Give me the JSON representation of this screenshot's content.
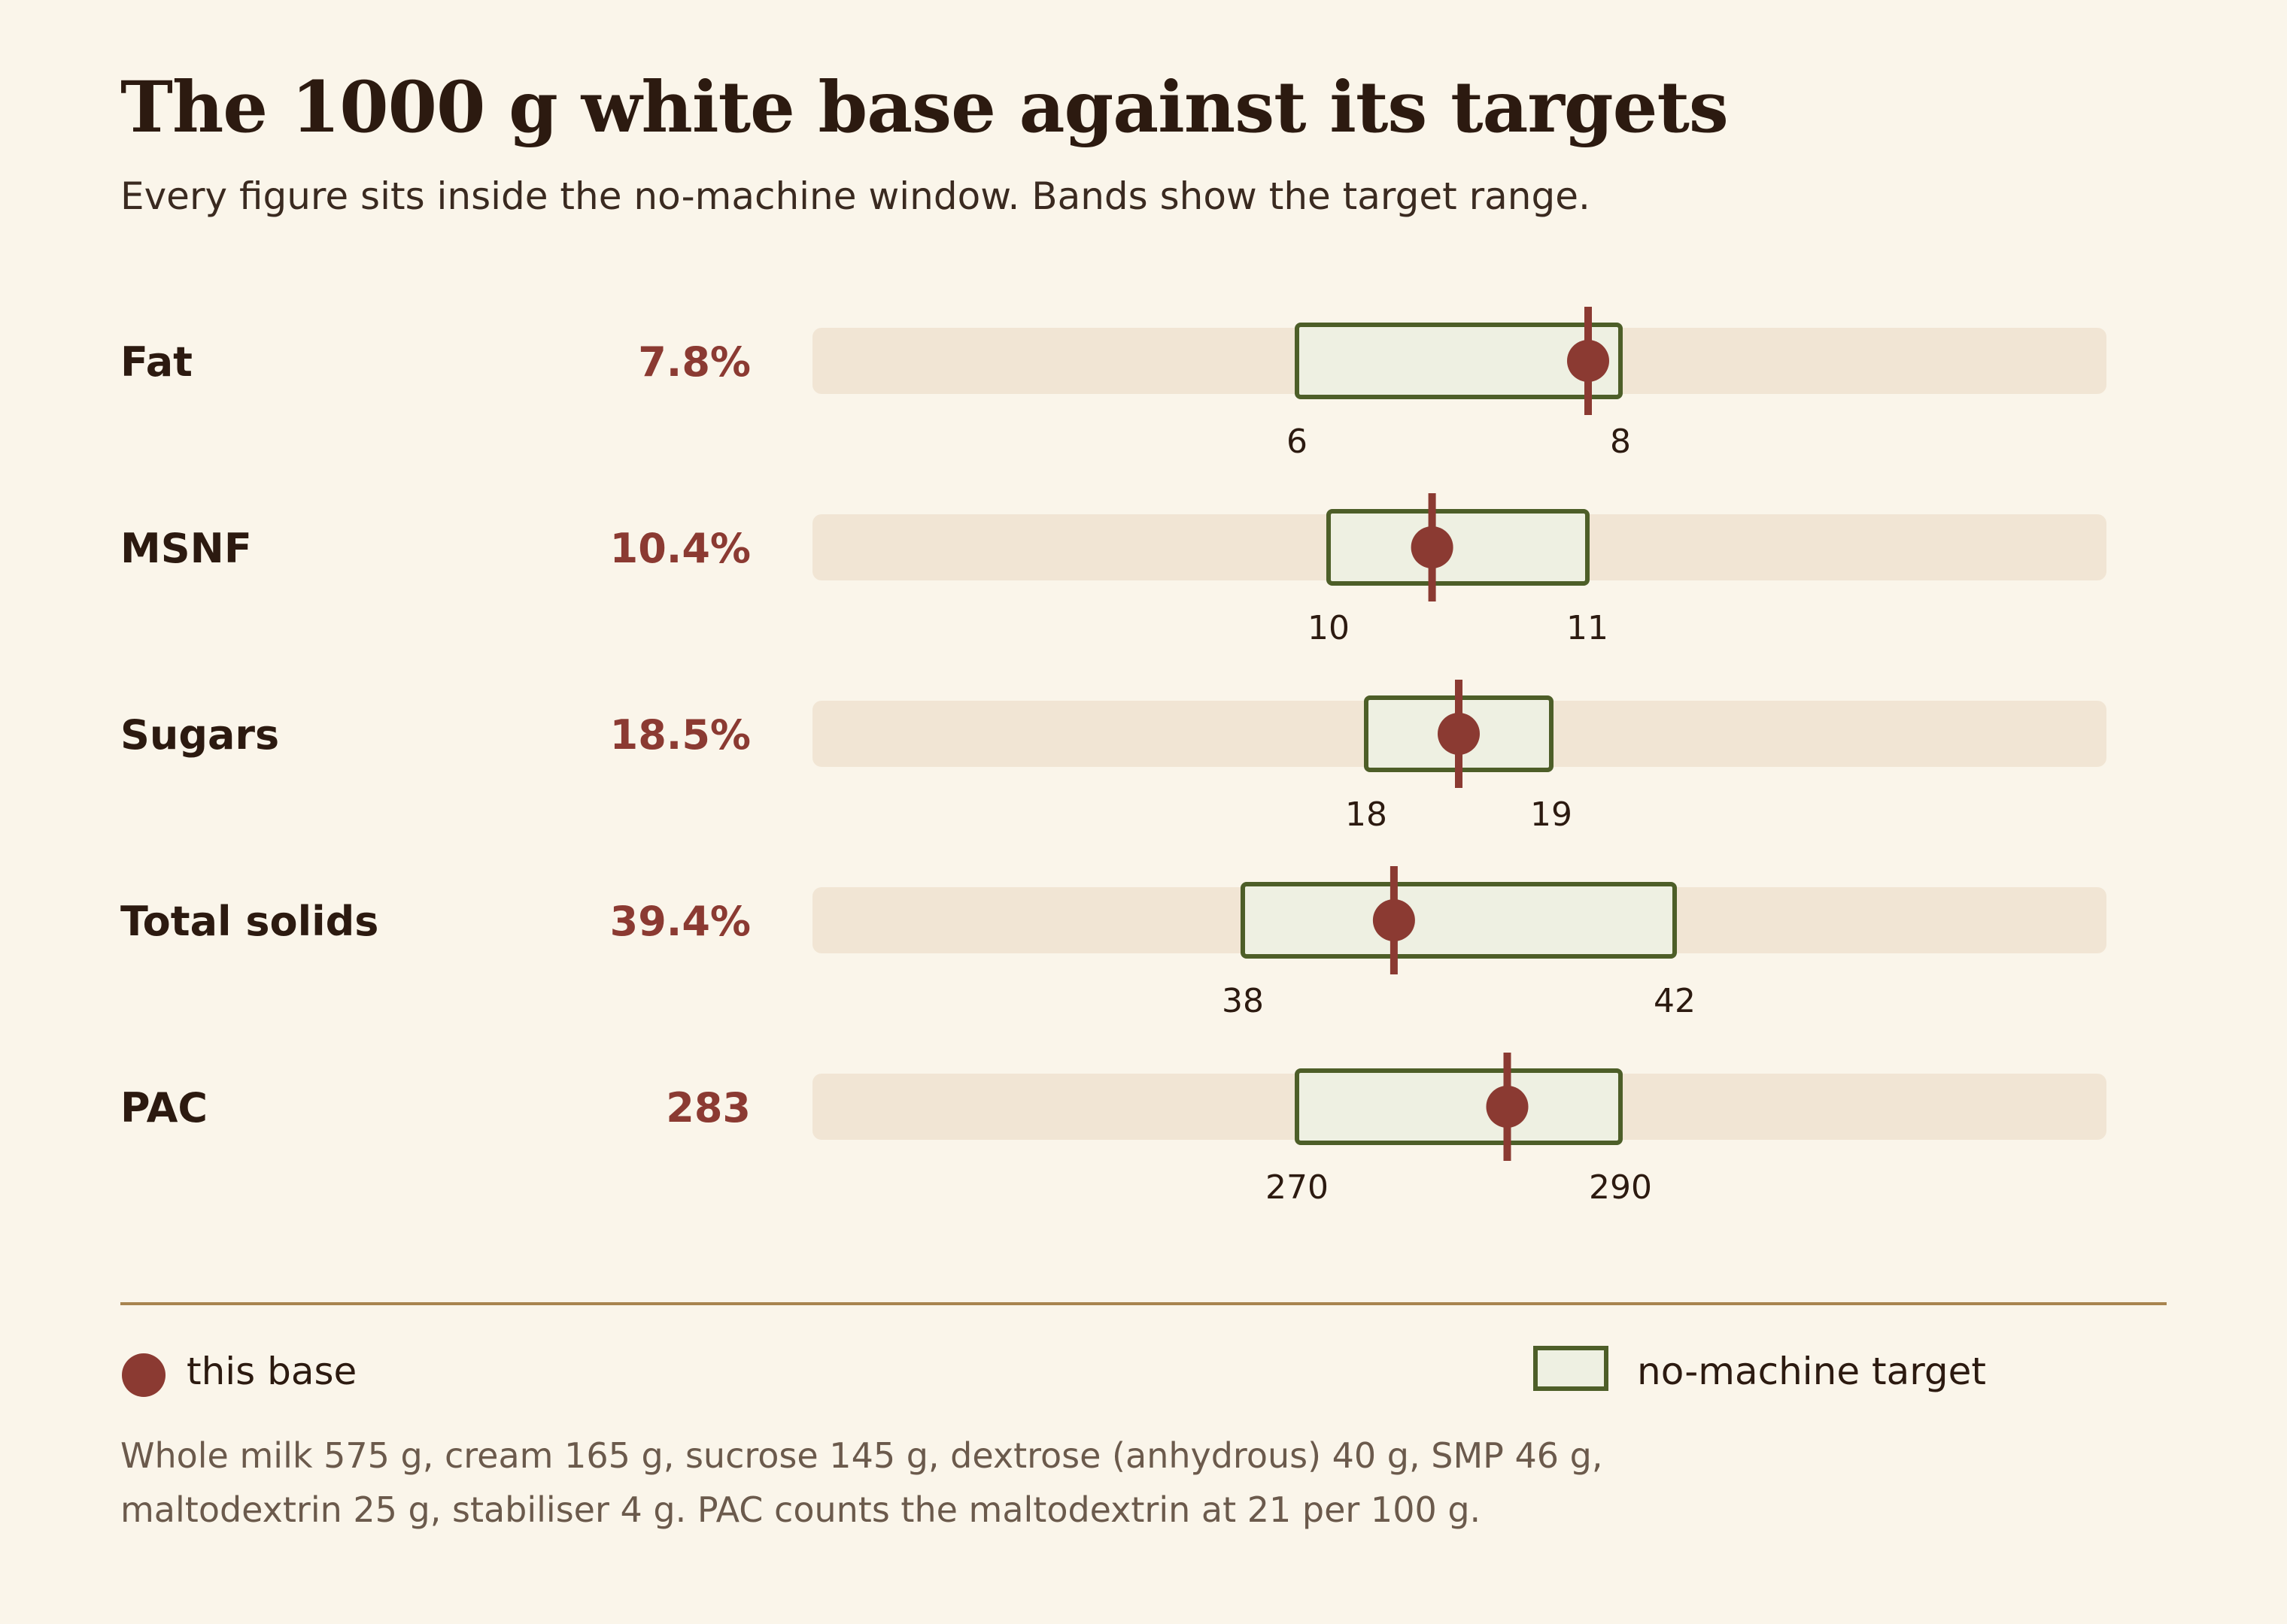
{
  "title": "The 1000 g white base against its targets",
  "subtitle": "Every figure sits inside the no-machine window. Bands show the target range.",
  "colors": {
    "background": "#faf5ea",
    "track": "#f1e5d4",
    "band_fill": "#eef0e2",
    "band_stroke": "#4d5e28",
    "marker": "#8b3a32",
    "label": "#2c1a10",
    "rule": "#a8844f"
  },
  "chart_data": {
    "type": "range-dot",
    "metrics": [
      {
        "label": "Fat",
        "value": 7.8,
        "value_label": "7.8%",
        "target": [
          6,
          8
        ],
        "target_labels": [
          "6",
          "8"
        ]
      },
      {
        "label": "MSNF",
        "value": 10.4,
        "value_label": "10.4%",
        "target": [
          10,
          11
        ],
        "target_labels": [
          "10",
          "11"
        ]
      },
      {
        "label": "Sugars",
        "value": 18.5,
        "value_label": "18.5%",
        "target": [
          18,
          19
        ],
        "target_labels": [
          "18",
          "19"
        ]
      },
      {
        "label": "Total solids",
        "value": 39.4,
        "value_label": "39.4%",
        "target": [
          38,
          42
        ],
        "target_labels": [
          "38",
          "42"
        ]
      },
      {
        "label": "PAC",
        "value": 283,
        "value_label": "283",
        "target": [
          270,
          290
        ],
        "target_labels": [
          "270",
          "290"
        ]
      }
    ]
  },
  "legend": {
    "marker_label": "this base",
    "band_label": "no-machine target"
  },
  "note": {
    "line1": "Whole milk 575 g, cream 165 g, sucrose 145 g, dextrose (anhydrous) 40 g, SMP 46 g,",
    "line2": "maltodextrin 25 g, stabiliser 4 g. PAC counts the maltodextrin at 21 per 100 g."
  }
}
